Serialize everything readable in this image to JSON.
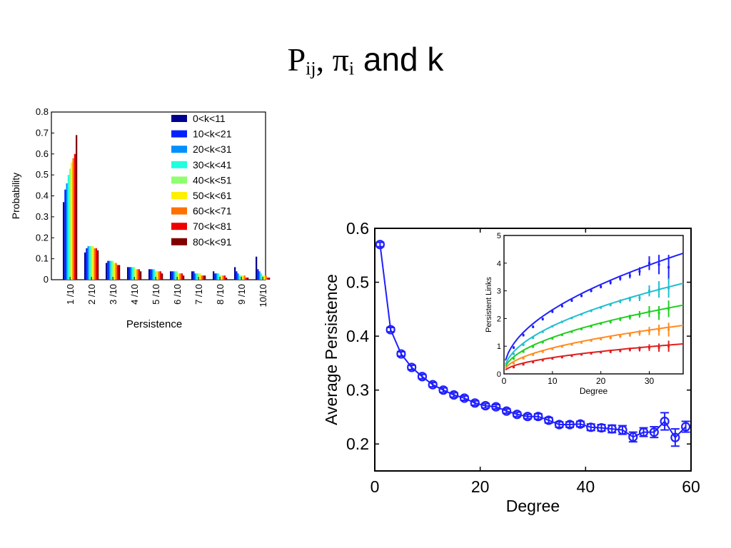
{
  "slide": {
    "title_parts": [
      "P",
      "ij",
      ", ",
      "π",
      "i",
      " and k"
    ]
  },
  "chart_data": [
    {
      "type": "bar",
      "xlabel": "Persistence",
      "ylabel": "Probability",
      "ylim": [
        0,
        0.8
      ],
      "yticks": [
        "0",
        "0.1",
        "0.2",
        "0.3",
        "0.4",
        "0.5",
        "0.6",
        "0.7",
        "0.8"
      ],
      "categories": [
        "1 /10",
        "2 /10",
        "3 /10",
        "4 /10",
        "5 /10",
        "6 /10",
        "7 /10",
        "8 /10",
        "9 /10",
        "10/10"
      ],
      "legend_position": "top-right",
      "grid": false,
      "series": [
        {
          "name": "0<k<11",
          "color": "#00008f",
          "values": [
            0.37,
            0.13,
            0.08,
            0.06,
            0.05,
            0.04,
            0.04,
            0.04,
            0.06,
            0.11
          ]
        },
        {
          "name": "10<k<21",
          "color": "#0020ff",
          "values": [
            0.43,
            0.15,
            0.09,
            0.06,
            0.05,
            0.04,
            0.04,
            0.03,
            0.04,
            0.05
          ]
        },
        {
          "name": "20<k<31",
          "color": "#0090ff",
          "values": [
            0.46,
            0.16,
            0.09,
            0.06,
            0.05,
            0.04,
            0.03,
            0.03,
            0.03,
            0.04
          ]
        },
        {
          "name": "30<k<41",
          "color": "#20ffdf",
          "values": [
            0.5,
            0.16,
            0.09,
            0.06,
            0.05,
            0.04,
            0.03,
            0.03,
            0.02,
            0.03
          ]
        },
        {
          "name": "40<k<51",
          "color": "#8fff70",
          "values": [
            0.53,
            0.16,
            0.09,
            0.06,
            0.04,
            0.04,
            0.03,
            0.02,
            0.02,
            0.02
          ]
        },
        {
          "name": "50<k<61",
          "color": "#ffef00",
          "values": [
            0.56,
            0.16,
            0.08,
            0.05,
            0.04,
            0.03,
            0.03,
            0.02,
            0.02,
            0.02
          ]
        },
        {
          "name": "60<k<71",
          "color": "#ff7000",
          "values": [
            0.58,
            0.15,
            0.08,
            0.05,
            0.04,
            0.03,
            0.02,
            0.02,
            0.02,
            0.02
          ]
        },
        {
          "name": "70<k<81",
          "color": "#ef0000",
          "values": [
            0.6,
            0.15,
            0.07,
            0.05,
            0.04,
            0.03,
            0.02,
            0.02,
            0.01,
            0.01
          ]
        },
        {
          "name": "80<k<91",
          "color": "#800000",
          "values": [
            0.69,
            0.14,
            0.07,
            0.04,
            0.03,
            0.02,
            0.02,
            0.01,
            0.01,
            0.01
          ]
        }
      ]
    },
    {
      "type": "line",
      "xlabel": "Degree",
      "ylabel": "Average Persistence",
      "xlim": [
        0,
        60
      ],
      "ylim": [
        0.15,
        0.6
      ],
      "xticks": [
        "0",
        "20",
        "40",
        "60"
      ],
      "yticks": [
        "0.2",
        "0.3",
        "0.4",
        "0.5",
        "0.6"
      ],
      "grid": false,
      "series": [
        {
          "color": "#1f1fff",
          "x": [
            1,
            3,
            5,
            7,
            9,
            11,
            13,
            15,
            17,
            19,
            21,
            23,
            25,
            27,
            29,
            31,
            33,
            35,
            37,
            39,
            41,
            43,
            45,
            47,
            49,
            51,
            53,
            55,
            57,
            59
          ],
          "y": [
            0.57,
            0.412,
            0.367,
            0.342,
            0.325,
            0.31,
            0.3,
            0.291,
            0.285,
            0.276,
            0.271,
            0.269,
            0.261,
            0.255,
            0.251,
            0.251,
            0.244,
            0.236,
            0.236,
            0.237,
            0.231,
            0.23,
            0.228,
            0.226,
            0.213,
            0.222,
            0.222,
            0.242,
            0.212,
            0.232
          ],
          "err": [
            0.004,
            0.004,
            0.004,
            0.004,
            0.004,
            0.004,
            0.004,
            0.004,
            0.004,
            0.004,
            0.004,
            0.004,
            0.004,
            0.004,
            0.004,
            0.005,
            0.005,
            0.005,
            0.005,
            0.005,
            0.006,
            0.006,
            0.007,
            0.008,
            0.009,
            0.008,
            0.01,
            0.016,
            0.016,
            0.01
          ]
        }
      ],
      "inset": {
        "type": "line",
        "xlabel": "Degree",
        "ylabel": "Persistent Links",
        "xlim": [
          0,
          37
        ],
        "ylim": [
          0,
          5
        ],
        "xticks": [
          "0",
          "10",
          "20",
          "30"
        ],
        "yticks": [
          "0",
          "1",
          "2",
          "3",
          "4",
          "5"
        ],
        "fit_scales": [
          0.7,
          0.53,
          0.4,
          0.28,
          0.17
        ],
        "series": [
          {
            "color": "#1f1fff",
            "x": [
              2,
              4,
              6,
              8,
              10,
              12,
              14,
              16,
              18,
              20,
              22,
              24,
              26,
              28,
              30,
              32,
              34
            ],
            "y": [
              0.95,
              1.4,
              1.7,
              1.98,
              2.25,
              2.45,
              2.65,
              2.82,
              3.0,
              3.15,
              3.3,
              3.45,
              3.55,
              3.7,
              4.0,
              3.95,
              3.85
            ],
            "err": [
              0.05,
              0.05,
              0.05,
              0.05,
              0.05,
              0.05,
              0.05,
              0.05,
              0.05,
              0.06,
              0.07,
              0.08,
              0.1,
              0.15,
              0.25,
              0.35,
              0.45
            ]
          },
          {
            "color": "#1fbfcf",
            "x": [
              2,
              4,
              6,
              8,
              10,
              12,
              14,
              16,
              18,
              20,
              22,
              24,
              26,
              28,
              30,
              32,
              34
            ],
            "y": [
              0.72,
              1.05,
              1.3,
              1.52,
              1.72,
              1.88,
              2.02,
              2.15,
              2.28,
              2.4,
              2.5,
              2.62,
              2.7,
              2.75,
              3.0,
              3.05,
              3.1
            ],
            "err": [
              0.04,
              0.04,
              0.04,
              0.04,
              0.04,
              0.04,
              0.04,
              0.04,
              0.05,
              0.05,
              0.06,
              0.07,
              0.09,
              0.12,
              0.2,
              0.3,
              0.35
            ]
          },
          {
            "color": "#1fcf1f",
            "x": [
              2,
              4,
              6,
              8,
              10,
              12,
              14,
              16,
              18,
              20,
              22,
              24,
              26,
              28,
              30,
              32,
              34
            ],
            "y": [
              0.55,
              0.8,
              0.98,
              1.14,
              1.28,
              1.41,
              1.52,
              1.62,
              1.72,
              1.82,
              1.88,
              1.98,
              2.05,
              2.15,
              2.25,
              2.2,
              2.35
            ],
            "err": [
              0.04,
              0.04,
              0.04,
              0.04,
              0.04,
              0.04,
              0.04,
              0.04,
              0.05,
              0.05,
              0.06,
              0.07,
              0.09,
              0.12,
              0.2,
              0.25,
              0.3
            ]
          },
          {
            "color": "#ff8c1f",
            "x": [
              2,
              4,
              6,
              8,
              10,
              12,
              14,
              16,
              18,
              20,
              22,
              24,
              26,
              28,
              30,
              32,
              34
            ],
            "y": [
              0.38,
              0.56,
              0.69,
              0.8,
              0.9,
              0.99,
              1.06,
              1.13,
              1.2,
              1.26,
              1.3,
              1.36,
              1.42,
              1.48,
              1.55,
              1.58,
              1.6
            ],
            "err": [
              0.03,
              0.03,
              0.03,
              0.03,
              0.03,
              0.03,
              0.03,
              0.03,
              0.04,
              0.04,
              0.05,
              0.06,
              0.08,
              0.1,
              0.15,
              0.2,
              0.25
            ]
          },
          {
            "color": "#df1f1f",
            "x": [
              2,
              4,
              6,
              8,
              10,
              12,
              14,
              16,
              18,
              20,
              22,
              24,
              26,
              28,
              30,
              32,
              34
            ],
            "y": [
              0.24,
              0.34,
              0.42,
              0.49,
              0.55,
              0.6,
              0.65,
              0.7,
              0.74,
              0.78,
              0.8,
              0.84,
              0.88,
              0.9,
              0.95,
              0.95,
              1.0
            ],
            "err": [
              0.03,
              0.03,
              0.03,
              0.03,
              0.03,
              0.03,
              0.03,
              0.03,
              0.04,
              0.04,
              0.05,
              0.06,
              0.07,
              0.09,
              0.12,
              0.15,
              0.2
            ]
          }
        ]
      }
    }
  ]
}
